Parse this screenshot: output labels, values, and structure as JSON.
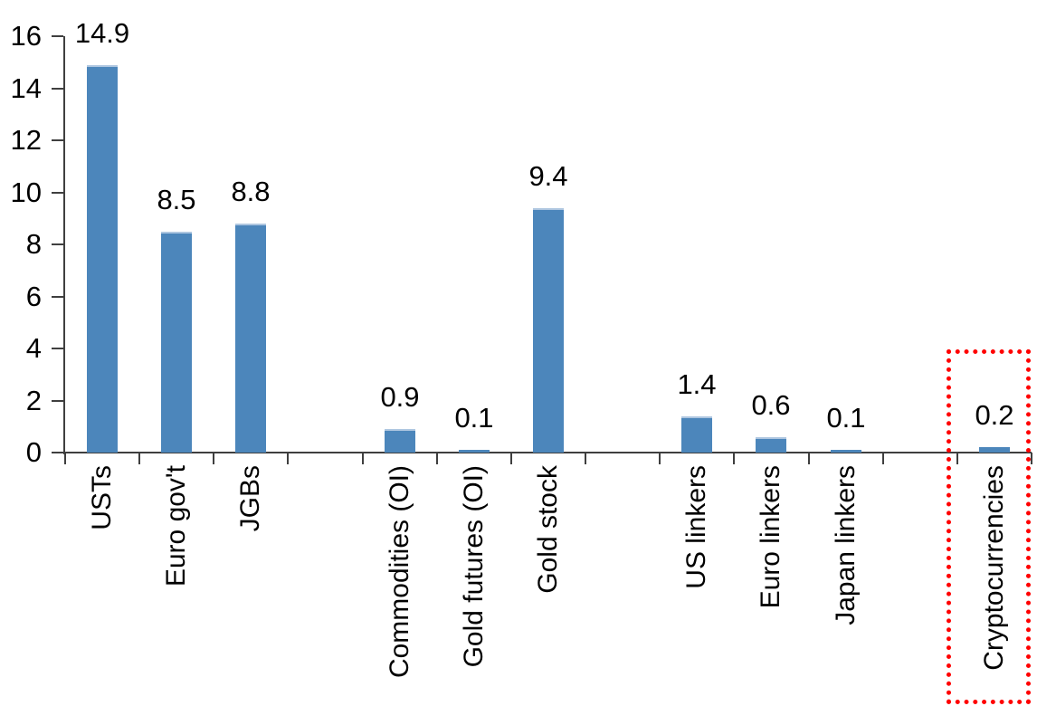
{
  "chart_data": {
    "type": "bar",
    "title": "",
    "categories": [
      "USTs",
      "Euro gov't",
      "JGBs",
      "Commodities (OI)",
      "Gold futures (OI)",
      "Gold stock",
      "US linkers",
      "Euro linkers",
      "Japan linkers",
      "Cryptocurrencies"
    ],
    "values": [
      14.9,
      8.5,
      8.8,
      0.9,
      0.1,
      9.4,
      1.4,
      0.6,
      0.1,
      0.2
    ],
    "data_labels": [
      "14.9",
      "8.5",
      "8.8",
      "0.9",
      "0.1",
      "9.4",
      "1.4",
      "0.6",
      "0.1",
      "0.2"
    ],
    "slot_indices": [
      0,
      1,
      2,
      4,
      5,
      6,
      8,
      9,
      10,
      12
    ],
    "total_slots": 13,
    "y_axis": {
      "min": 0,
      "max": 16,
      "step": 2,
      "tick_labels": [
        "0",
        "2",
        "4",
        "6",
        "8",
        "10",
        "12",
        "14",
        "16"
      ]
    },
    "xlabel": "",
    "ylabel": "",
    "grid": "off",
    "legend": "none",
    "bar_color": "#4c86bb",
    "axis_color": "#3f3f3f",
    "label_color": "#000000",
    "highlight": {
      "category": "Cryptocurrencies",
      "value": 0.2,
      "style": "red-dotted-box",
      "color": "#ff0000"
    }
  }
}
